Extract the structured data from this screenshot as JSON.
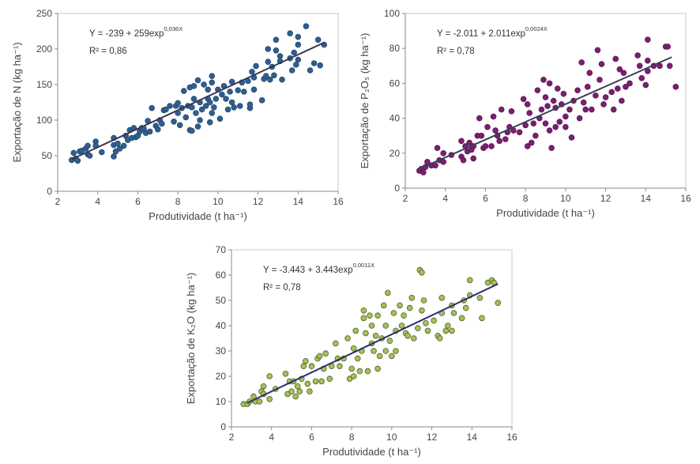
{
  "chart_data": [
    {
      "type": "scatter",
      "xlabel": "Produtividade (t ha⁻¹)",
      "ylabel": "Exportação de N (kg ha⁻¹)",
      "xlim": [
        2,
        16
      ],
      "ylim": [
        0,
        250
      ],
      "xticks": [
        "2",
        "4",
        "6",
        "8",
        "10",
        "12",
        "14",
        "16"
      ],
      "yticks": [
        "0",
        "50",
        "100",
        "150",
        "200",
        "250"
      ],
      "equation": "Y = -239 + 259exp",
      "equation_exponent": "0,036X",
      "r2": "R² = 0,86",
      "marker_color": "#2f5f8f",
      "marker_edge": "#24496f",
      "line_color": "#3b3553",
      "grid": false,
      "legend": "none",
      "trendline": {
        "x": [
          2.7,
          15.3
        ],
        "y": [
          45,
          209
        ]
      },
      "points": [
        [
          2.7,
          44
        ],
        [
          2.8,
          54
        ],
        [
          2.9,
          46
        ],
        [
          3.0,
          43
        ],
        [
          3.1,
          56
        ],
        [
          3.2,
          57
        ],
        [
          3.4,
          60
        ],
        [
          3.5,
          64
        ],
        [
          3.5,
          52
        ],
        [
          3.6,
          50
        ],
        [
          3.9,
          70
        ],
        [
          3.9,
          64
        ],
        [
          4.2,
          55
        ],
        [
          4.8,
          65
        ],
        [
          4.8,
          49
        ],
        [
          4.8,
          75
        ],
        [
          4.9,
          56
        ],
        [
          5.0,
          67
        ],
        [
          5.1,
          60
        ],
        [
          5.3,
          64
        ],
        [
          5.4,
          78
        ],
        [
          5.5,
          72
        ],
        [
          5.6,
          86
        ],
        [
          5.7,
          75
        ],
        [
          5.8,
          89
        ],
        [
          5.9,
          76
        ],
        [
          6.0,
          78
        ],
        [
          6.1,
          84
        ],
        [
          6.2,
          89
        ],
        [
          6.3,
          88
        ],
        [
          6.4,
          82
        ],
        [
          6.5,
          99
        ],
        [
          6.6,
          84
        ],
        [
          6.7,
          117
        ],
        [
          6.9,
          92
        ],
        [
          7.0,
          87
        ],
        [
          7.1,
          100
        ],
        [
          7.2,
          95
        ],
        [
          7.3,
          114
        ],
        [
          7.4,
          115
        ],
        [
          7.6,
          120
        ],
        [
          7.8,
          98
        ],
        [
          7.9,
          120
        ],
        [
          8.0,
          124
        ],
        [
          8.0,
          110
        ],
        [
          8.1,
          93
        ],
        [
          8.2,
          117
        ],
        [
          8.3,
          141
        ],
        [
          8.4,
          104
        ],
        [
          8.5,
          120
        ],
        [
          8.6,
          146
        ],
        [
          8.6,
          86
        ],
        [
          8.7,
          85
        ],
        [
          8.7,
          118
        ],
        [
          8.8,
          130
        ],
        [
          8.8,
          148
        ],
        [
          8.9,
          110
        ],
        [
          9.0,
          156
        ],
        [
          9.0,
          91
        ],
        [
          9.1,
          100
        ],
        [
          9.1,
          125
        ],
        [
          9.2,
          115
        ],
        [
          9.3,
          150
        ],
        [
          9.4,
          120
        ],
        [
          9.5,
          130
        ],
        [
          9.5,
          143
        ],
        [
          9.6,
          97
        ],
        [
          9.6,
          125
        ],
        [
          9.7,
          162
        ],
        [
          9.7,
          153
        ],
        [
          9.7,
          110
        ],
        [
          9.8,
          118
        ],
        [
          9.9,
          130
        ],
        [
          10.0,
          143
        ],
        [
          10.1,
          102
        ],
        [
          10.2,
          136
        ],
        [
          10.3,
          148
        ],
        [
          10.4,
          130
        ],
        [
          10.5,
          115
        ],
        [
          10.6,
          140
        ],
        [
          10.7,
          154
        ],
        [
          10.7,
          125
        ],
        [
          10.8,
          118
        ],
        [
          11.0,
          142
        ],
        [
          11.1,
          120
        ],
        [
          11.2,
          153
        ],
        [
          11.3,
          140
        ],
        [
          11.5,
          155
        ],
        [
          11.6,
          117
        ],
        [
          11.6,
          122
        ],
        [
          11.7,
          168
        ],
        [
          11.8,
          160
        ],
        [
          11.8,
          143
        ],
        [
          11.9,
          176
        ],
        [
          12.2,
          128
        ],
        [
          12.3,
          158
        ],
        [
          12.4,
          162
        ],
        [
          12.5,
          200
        ],
        [
          12.5,
          182
        ],
        [
          12.6,
          157
        ],
        [
          12.7,
          175
        ],
        [
          12.8,
          163
        ],
        [
          12.9,
          198
        ],
        [
          12.9,
          213
        ],
        [
          13.1,
          190
        ],
        [
          13.1,
          183
        ],
        [
          13.2,
          157
        ],
        [
          13.6,
          222
        ],
        [
          13.6,
          187
        ],
        [
          13.7,
          170
        ],
        [
          13.8,
          195
        ],
        [
          13.9,
          178
        ],
        [
          14.0,
          217
        ],
        [
          14.0,
          206
        ],
        [
          14.0,
          185
        ],
        [
          14.4,
          232
        ],
        [
          14.6,
          170
        ],
        [
          14.8,
          180
        ],
        [
          15.0,
          213
        ],
        [
          15.1,
          177
        ],
        [
          15.3,
          206
        ]
      ]
    },
    {
      "type": "scatter",
      "xlabel": "Produtividade (t ha⁻¹)",
      "ylabel": "Exportação de P₂O₅ (kg ha⁻¹)",
      "xlim": [
        2,
        16
      ],
      "ylim": [
        0,
        100
      ],
      "xticks": [
        "2",
        "4",
        "6",
        "8",
        "10",
        "12",
        "14",
        "16"
      ],
      "yticks": [
        "0",
        "20",
        "40",
        "60",
        "80",
        "100"
      ],
      "equation": "Y = -2.011 + 2.011exp",
      "equation_exponent": "0,0024X",
      "r2": "R² = 0,78",
      "marker_color": "#7b1f70",
      "marker_edge": "#5e1656",
      "line_color": "#3b3f5c",
      "grid": false,
      "legend": "none",
      "trendline": {
        "x": [
          2.7,
          15.3
        ],
        "y": [
          11,
          75
        ]
      },
      "points": [
        [
          2.7,
          10
        ],
        [
          2.8,
          11
        ],
        [
          2.9,
          9
        ],
        [
          3.0,
          12
        ],
        [
          3.1,
          15
        ],
        [
          3.3,
          13
        ],
        [
          3.5,
          13
        ],
        [
          3.6,
          23
        ],
        [
          3.7,
          16
        ],
        [
          3.9,
          15
        ],
        [
          3.9,
          20
        ],
        [
          4.3,
          19
        ],
        [
          4.8,
          27
        ],
        [
          4.8,
          18
        ],
        [
          4.9,
          16
        ],
        [
          5.0,
          24
        ],
        [
          5.1,
          21
        ],
        [
          5.2,
          26
        ],
        [
          5.3,
          22
        ],
        [
          5.4,
          17
        ],
        [
          5.4,
          24
        ],
        [
          5.6,
          30
        ],
        [
          5.7,
          40
        ],
        [
          5.8,
          30
        ],
        [
          5.9,
          23
        ],
        [
          6.0,
          24
        ],
        [
          6.1,
          35
        ],
        [
          6.3,
          24
        ],
        [
          6.4,
          41
        ],
        [
          6.5,
          33
        ],
        [
          6.6,
          30
        ],
        [
          6.7,
          27
        ],
        [
          6.8,
          45
        ],
        [
          7.0,
          28
        ],
        [
          7.1,
          32
        ],
        [
          7.2,
          35
        ],
        [
          7.3,
          44
        ],
        [
          7.4,
          33
        ],
        [
          7.7,
          32
        ],
        [
          7.9,
          51
        ],
        [
          8.0,
          36
        ],
        [
          8.1,
          48
        ],
        [
          8.1,
          24
        ],
        [
          8.2,
          43
        ],
        [
          8.3,
          26
        ],
        [
          8.4,
          37
        ],
        [
          8.5,
          30
        ],
        [
          8.6,
          56
        ],
        [
          8.7,
          40
        ],
        [
          8.8,
          45
        ],
        [
          8.9,
          62
        ],
        [
          9.0,
          37
        ],
        [
          9.0,
          52
        ],
        [
          9.1,
          47
        ],
        [
          9.2,
          60
        ],
        [
          9.2,
          33
        ],
        [
          9.3,
          23
        ],
        [
          9.4,
          50
        ],
        [
          9.5,
          46
        ],
        [
          9.5,
          35
        ],
        [
          9.6,
          57
        ],
        [
          9.7,
          38
        ],
        [
          9.8,
          48
        ],
        [
          9.9,
          54
        ],
        [
          10.0,
          35
        ],
        [
          10.0,
          41
        ],
        [
          10.2,
          45
        ],
        [
          10.3,
          29
        ],
        [
          10.4,
          50
        ],
        [
          10.6,
          56
        ],
        [
          10.7,
          40
        ],
        [
          10.8,
          72
        ],
        [
          10.9,
          49
        ],
        [
          11.0,
          45
        ],
        [
          11.1,
          58
        ],
        [
          11.2,
          66
        ],
        [
          11.3,
          45
        ],
        [
          11.5,
          53
        ],
        [
          11.6,
          79
        ],
        [
          11.7,
          62
        ],
        [
          11.8,
          71
        ],
        [
          11.9,
          48
        ],
        [
          12.0,
          52
        ],
        [
          12.3,
          55
        ],
        [
          12.4,
          45
        ],
        [
          12.5,
          74
        ],
        [
          12.6,
          57
        ],
        [
          12.7,
          68
        ],
        [
          12.8,
          50
        ],
        [
          12.9,
          66
        ],
        [
          13.0,
          58
        ],
        [
          13.2,
          60
        ],
        [
          13.6,
          76
        ],
        [
          13.7,
          70
        ],
        [
          13.8,
          63
        ],
        [
          14.0,
          59
        ],
        [
          14.1,
          85
        ],
        [
          14.1,
          73
        ],
        [
          14.1,
          67
        ],
        [
          14.4,
          70
        ],
        [
          14.7,
          70
        ],
        [
          15.0,
          81
        ],
        [
          15.1,
          81
        ],
        [
          15.2,
          70
        ],
        [
          15.5,
          58
        ]
      ]
    },
    {
      "type": "scatter",
      "xlabel": "Produtividade (t ha⁻¹)",
      "ylabel": "Exportação de K₂O (kg ha⁻¹)",
      "xlim": [
        2,
        16
      ],
      "ylim": [
        0,
        70
      ],
      "xticks": [
        "2",
        "4",
        "6",
        "8",
        "10",
        "12",
        "14",
        "16"
      ],
      "yticks": [
        "0",
        "10",
        "20",
        "30",
        "40",
        "50",
        "60",
        "70"
      ],
      "equation": "Y = -3.443 + 3.443exp",
      "equation_exponent": "0,0011X",
      "r2": "R² = 0,78",
      "marker_color": "#a4c05a",
      "marker_edge": "#4f5f22",
      "line_color": "#2e2f6e",
      "grid": false,
      "legend": "none",
      "trendline": {
        "x": [
          2.8,
          15.3
        ],
        "y": [
          9.5,
          56.5
        ]
      },
      "points": [
        [
          2.6,
          9
        ],
        [
          2.8,
          9
        ],
        [
          2.9,
          10
        ],
        [
          3.1,
          12
        ],
        [
          3.2,
          10
        ],
        [
          3.4,
          10
        ],
        [
          3.5,
          14
        ],
        [
          3.6,
          16
        ],
        [
          3.6,
          13
        ],
        [
          3.9,
          20
        ],
        [
          3.9,
          11
        ],
        [
          4.2,
          15
        ],
        [
          4.7,
          21
        ],
        [
          4.8,
          13
        ],
        [
          4.9,
          18
        ],
        [
          5.0,
          14
        ],
        [
          5.1,
          18
        ],
        [
          5.2,
          12
        ],
        [
          5.3,
          16
        ],
        [
          5.4,
          14
        ],
        [
          5.5,
          19
        ],
        [
          5.6,
          24
        ],
        [
          5.7,
          26
        ],
        [
          5.8,
          17
        ],
        [
          5.9,
          14
        ],
        [
          6.0,
          24
        ],
        [
          6.2,
          18
        ],
        [
          6.3,
          27
        ],
        [
          6.4,
          28
        ],
        [
          6.5,
          18
        ],
        [
          6.6,
          23
        ],
        [
          6.7,
          29
        ],
        [
          6.9,
          19
        ],
        [
          7.0,
          24
        ],
        [
          7.2,
          33
        ],
        [
          7.3,
          27
        ],
        [
          7.4,
          24
        ],
        [
          7.6,
          27
        ],
        [
          7.8,
          35
        ],
        [
          7.9,
          19
        ],
        [
          8.0,
          23
        ],
        [
          8.1,
          31
        ],
        [
          8.1,
          20
        ],
        [
          8.2,
          38
        ],
        [
          8.3,
          27
        ],
        [
          8.4,
          22
        ],
        [
          8.5,
          30
        ],
        [
          8.6,
          43
        ],
        [
          8.6,
          46
        ],
        [
          8.7,
          37
        ],
        [
          8.8,
          22
        ],
        [
          8.9,
          44
        ],
        [
          9.0,
          40
        ],
        [
          9.0,
          33
        ],
        [
          9.1,
          30
        ],
        [
          9.2,
          36
        ],
        [
          9.3,
          23
        ],
        [
          9.3,
          44
        ],
        [
          9.4,
          28
        ],
        [
          9.5,
          35
        ],
        [
          9.6,
          48
        ],
        [
          9.7,
          40
        ],
        [
          9.7,
          30
        ],
        [
          9.8,
          53
        ],
        [
          9.9,
          34
        ],
        [
          10.0,
          28
        ],
        [
          10.1,
          45
        ],
        [
          10.2,
          38
        ],
        [
          10.2,
          30
        ],
        [
          10.4,
          48
        ],
        [
          10.5,
          40
        ],
        [
          10.6,
          44
        ],
        [
          10.7,
          37
        ],
        [
          10.8,
          36
        ],
        [
          10.9,
          47
        ],
        [
          11.0,
          51
        ],
        [
          11.1,
          35
        ],
        [
          11.3,
          39
        ],
        [
          11.4,
          62
        ],
        [
          11.5,
          61
        ],
        [
          11.5,
          46
        ],
        [
          11.6,
          50
        ],
        [
          11.7,
          41
        ],
        [
          11.8,
          38
        ],
        [
          12.1,
          42
        ],
        [
          12.3,
          36
        ],
        [
          12.4,
          35
        ],
        [
          12.5,
          51
        ],
        [
          12.5,
          45
        ],
        [
          12.7,
          38
        ],
        [
          12.8,
          40
        ],
        [
          13.0,
          48
        ],
        [
          13.0,
          38
        ],
        [
          13.1,
          45
        ],
        [
          13.5,
          43
        ],
        [
          13.6,
          50
        ],
        [
          13.7,
          47
        ],
        [
          13.9,
          58
        ],
        [
          13.9,
          52
        ],
        [
          14.4,
          51
        ],
        [
          14.5,
          43
        ],
        [
          14.8,
          57
        ],
        [
          15.0,
          58
        ],
        [
          15.1,
          57
        ],
        [
          15.3,
          49
        ]
      ]
    }
  ]
}
